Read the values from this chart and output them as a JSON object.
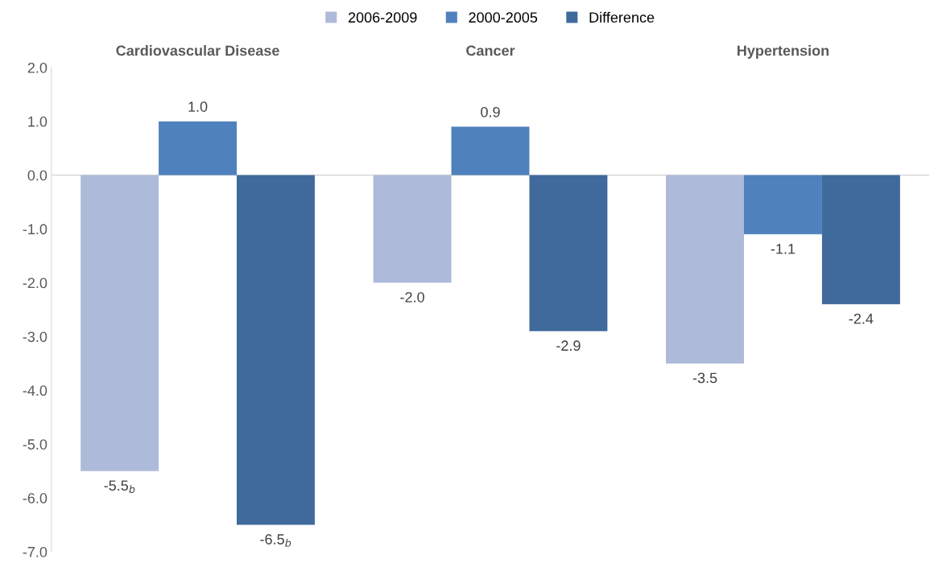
{
  "chart_data": {
    "type": "bar",
    "categories": [
      "Cardiovascular Disease",
      "Cancer",
      "Hypertension"
    ],
    "series": [
      {
        "name": "2006-2009",
        "color": "#adbad9",
        "values": [
          -5.5,
          -2.0,
          -3.5
        ],
        "value_labels": [
          "-5.5$_{b}$",
          "-2.0",
          "-3.5"
        ]
      },
      {
        "name": "2000-2005",
        "color": "#4f81bd",
        "values": [
          1.0,
          0.9,
          -1.1
        ],
        "value_labels": [
          "1.0",
          "0.9",
          "-1.1"
        ]
      },
      {
        "name": "Difference",
        "color": "#3f6a9b",
        "values": [
          -6.5,
          -2.9,
          -2.4
        ],
        "value_labels": [
          "-6.5$_{b}$",
          "-2.9",
          "-2.4"
        ]
      }
    ],
    "ylim": [
      -7,
      2
    ],
    "yticks": [
      {
        "value": -7,
        "label": "-7.0"
      },
      {
        "value": -6,
        "label": "-6.0"
      },
      {
        "value": -5,
        "label": "-5.0"
      },
      {
        "value": -4,
        "label": "-4.0"
      },
      {
        "value": -3,
        "label": "-3.0"
      },
      {
        "value": -2,
        "label": "-2.0"
      },
      {
        "value": -1,
        "label": "-1.0"
      },
      {
        "value": 0,
        "label": "0.0"
      },
      {
        "value": 1,
        "label": "1.0"
      },
      {
        "value": 2,
        "label": "2.0"
      }
    ],
    "grid": false,
    "ref_lines": [
      {
        "axis": "y",
        "value": 0,
        "color": "#d9d9d9"
      }
    ],
    "legend": "top"
  }
}
